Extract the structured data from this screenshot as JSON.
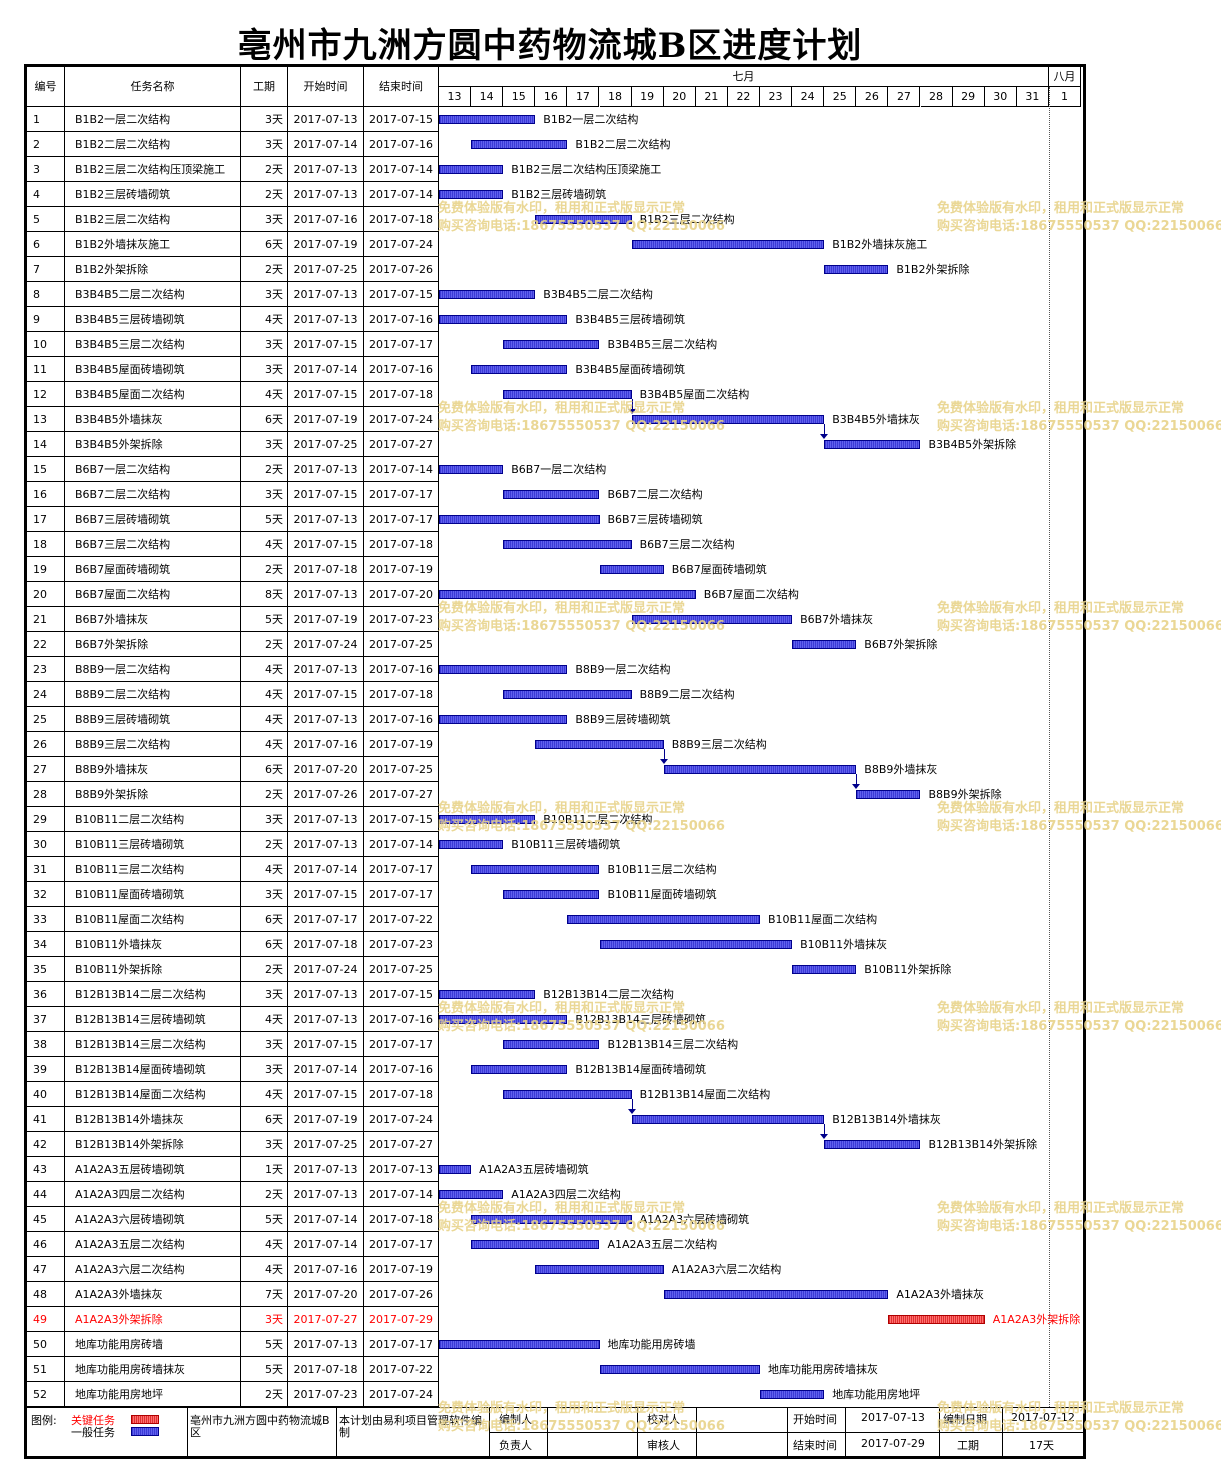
{
  "title": "亳州市九洲方圆中药物流城B区进度计划",
  "headers": {
    "id": "编号",
    "name": "任务名称",
    "duration": "工期",
    "start": "开始时间",
    "end": "结束时间"
  },
  "timeline": {
    "month1": "七月",
    "month2": "八月",
    "days": [
      "13",
      "14",
      "15",
      "16",
      "17",
      "18",
      "19",
      "20",
      "21",
      "22",
      "23",
      "24",
      "25",
      "26",
      "27",
      "28",
      "29",
      "30",
      "31",
      "1"
    ]
  },
  "chart_data": {
    "type": "gantt",
    "x_unit": "day",
    "xlim": [
      "2017-07-13",
      "2017-08-01"
    ],
    "tasks": [
      {
        "id": "1",
        "name": "B1B2一层二次结构",
        "duration": "3天",
        "start": "2017-07-13",
        "end": "2017-07-15"
      },
      {
        "id": "2",
        "name": "B1B2二层二次结构",
        "duration": "3天",
        "start": "2017-07-14",
        "end": "2017-07-16"
      },
      {
        "id": "3",
        "name": "B1B2三层二次结构压顶梁施工",
        "duration": "2天",
        "start": "2017-07-13",
        "end": "2017-07-14"
      },
      {
        "id": "4",
        "name": "B1B2三层砖墙砌筑",
        "duration": "2天",
        "start": "2017-07-13",
        "end": "2017-07-14"
      },
      {
        "id": "5",
        "name": "B1B2三层二次结构",
        "duration": "3天",
        "start": "2017-07-16",
        "end": "2017-07-18"
      },
      {
        "id": "6",
        "name": "B1B2外墙抹灰施工",
        "duration": "6天",
        "start": "2017-07-19",
        "end": "2017-07-24"
      },
      {
        "id": "7",
        "name": "B1B2外架拆除",
        "duration": "2天",
        "start": "2017-07-25",
        "end": "2017-07-26"
      },
      {
        "id": "8",
        "name": "B3B4B5二层二次结构",
        "duration": "3天",
        "start": "2017-07-13",
        "end": "2017-07-15"
      },
      {
        "id": "9",
        "name": "B3B4B5三层砖墙砌筑",
        "duration": "4天",
        "start": "2017-07-13",
        "end": "2017-07-16"
      },
      {
        "id": "10",
        "name": "B3B4B5三层二次结构",
        "duration": "3天",
        "start": "2017-07-15",
        "end": "2017-07-17"
      },
      {
        "id": "11",
        "name": "B3B4B5屋面砖墙砌筑",
        "duration": "3天",
        "start": "2017-07-14",
        "end": "2017-07-16"
      },
      {
        "id": "12",
        "name": "B3B4B5屋面二次结构",
        "duration": "4天",
        "start": "2017-07-15",
        "end": "2017-07-18"
      },
      {
        "id": "13",
        "name": "B3B4B5外墙抹灰",
        "duration": "6天",
        "start": "2017-07-19",
        "end": "2017-07-24"
      },
      {
        "id": "14",
        "name": "B3B4B5外架拆除",
        "duration": "3天",
        "start": "2017-07-25",
        "end": "2017-07-27"
      },
      {
        "id": "15",
        "name": "B6B7一层二次结构",
        "duration": "2天",
        "start": "2017-07-13",
        "end": "2017-07-14"
      },
      {
        "id": "16",
        "name": "B6B7二层二次结构",
        "duration": "3天",
        "start": "2017-07-15",
        "end": "2017-07-17"
      },
      {
        "id": "17",
        "name": "B6B7三层砖墙砌筑",
        "duration": "5天",
        "start": "2017-07-13",
        "end": "2017-07-17"
      },
      {
        "id": "18",
        "name": "B6B7三层二次结构",
        "duration": "4天",
        "start": "2017-07-15",
        "end": "2017-07-18"
      },
      {
        "id": "19",
        "name": "B6B7屋面砖墙砌筑",
        "duration": "2天",
        "start": "2017-07-18",
        "end": "2017-07-19"
      },
      {
        "id": "20",
        "name": "B6B7屋面二次结构",
        "duration": "8天",
        "start": "2017-07-13",
        "end": "2017-07-20"
      },
      {
        "id": "21",
        "name": "B6B7外墙抹灰",
        "duration": "5天",
        "start": "2017-07-19",
        "end": "2017-07-23"
      },
      {
        "id": "22",
        "name": "B6B7外架拆除",
        "duration": "2天",
        "start": "2017-07-24",
        "end": "2017-07-25"
      },
      {
        "id": "23",
        "name": "B8B9一层二次结构",
        "duration": "4天",
        "start": "2017-07-13",
        "end": "2017-07-16"
      },
      {
        "id": "24",
        "name": "B8B9二层二次结构",
        "duration": "4天",
        "start": "2017-07-15",
        "end": "2017-07-18"
      },
      {
        "id": "25",
        "name": "B8B9三层砖墙砌筑",
        "duration": "4天",
        "start": "2017-07-13",
        "end": "2017-07-16"
      },
      {
        "id": "26",
        "name": "B8B9三层二次结构",
        "duration": "4天",
        "start": "2017-07-16",
        "end": "2017-07-19"
      },
      {
        "id": "27",
        "name": "B8B9外墙抹灰",
        "duration": "6天",
        "start": "2017-07-20",
        "end": "2017-07-25"
      },
      {
        "id": "28",
        "name": "B8B9外架拆除",
        "duration": "2天",
        "start": "2017-07-26",
        "end": "2017-07-27"
      },
      {
        "id": "29",
        "name": "B10B11二层二次结构",
        "duration": "3天",
        "start": "2017-07-13",
        "end": "2017-07-15"
      },
      {
        "id": "30",
        "name": "B10B11三层砖墙砌筑",
        "duration": "2天",
        "start": "2017-07-13",
        "end": "2017-07-14"
      },
      {
        "id": "31",
        "name": "B10B11三层二次结构",
        "duration": "4天",
        "start": "2017-07-14",
        "end": "2017-07-17"
      },
      {
        "id": "32",
        "name": "B10B11屋面砖墙砌筑",
        "duration": "3天",
        "start": "2017-07-15",
        "end": "2017-07-17"
      },
      {
        "id": "33",
        "name": "B10B11屋面二次结构",
        "duration": "6天",
        "start": "2017-07-17",
        "end": "2017-07-22"
      },
      {
        "id": "34",
        "name": "B10B11外墙抹灰",
        "duration": "6天",
        "start": "2017-07-18",
        "end": "2017-07-23"
      },
      {
        "id": "35",
        "name": "B10B11外架拆除",
        "duration": "2天",
        "start": "2017-07-24",
        "end": "2017-07-25"
      },
      {
        "id": "36",
        "name": "B12B13B14二层二次结构",
        "duration": "3天",
        "start": "2017-07-13",
        "end": "2017-07-15"
      },
      {
        "id": "37",
        "name": "B12B13B14三层砖墙砌筑",
        "duration": "4天",
        "start": "2017-07-13",
        "end": "2017-07-16"
      },
      {
        "id": "38",
        "name": "B12B13B14三层二次结构",
        "duration": "3天",
        "start": "2017-07-15",
        "end": "2017-07-17"
      },
      {
        "id": "39",
        "name": "B12B13B14屋面砖墙砌筑",
        "duration": "3天",
        "start": "2017-07-14",
        "end": "2017-07-16"
      },
      {
        "id": "40",
        "name": "B12B13B14屋面二次结构",
        "duration": "4天",
        "start": "2017-07-15",
        "end": "2017-07-18"
      },
      {
        "id": "41",
        "name": "B12B13B14外墙抹灰",
        "duration": "6天",
        "start": "2017-07-19",
        "end": "2017-07-24"
      },
      {
        "id": "42",
        "name": "B12B13B14外架拆除",
        "duration": "3天",
        "start": "2017-07-25",
        "end": "2017-07-27"
      },
      {
        "id": "43",
        "name": "A1A2A3五层砖墙砌筑",
        "duration": "1天",
        "start": "2017-07-13",
        "end": "2017-07-13"
      },
      {
        "id": "44",
        "name": "A1A2A3四层二次结构",
        "duration": "2天",
        "start": "2017-07-13",
        "end": "2017-07-14"
      },
      {
        "id": "45",
        "name": "A1A2A3六层砖墙砌筑",
        "duration": "5天",
        "start": "2017-07-14",
        "end": "2017-07-18"
      },
      {
        "id": "46",
        "name": "A1A2A3五层二次结构",
        "duration": "4天",
        "start": "2017-07-14",
        "end": "2017-07-17"
      },
      {
        "id": "47",
        "name": "A1A2A3六层二次结构",
        "duration": "4天",
        "start": "2017-07-16",
        "end": "2017-07-19"
      },
      {
        "id": "48",
        "name": "A1A2A3外墙抹灰",
        "duration": "7天",
        "start": "2017-07-20",
        "end": "2017-07-26"
      },
      {
        "id": "49",
        "name": "A1A2A3外架拆除",
        "duration": "3天",
        "start": "2017-07-27",
        "end": "2017-07-29",
        "critical": true
      },
      {
        "id": "50",
        "name": "地库功能用房砖墙",
        "duration": "5天",
        "start": "2017-07-13",
        "end": "2017-07-17"
      },
      {
        "id": "51",
        "name": "地库功能用房砖墙抹灰",
        "duration": "5天",
        "start": "2017-07-18",
        "end": "2017-07-22"
      },
      {
        "id": "52",
        "name": "地库功能用房地坪",
        "duration": "2天",
        "start": "2017-07-23",
        "end": "2017-07-24"
      }
    ],
    "links": [
      [
        "12",
        "13"
      ],
      [
        "13",
        "14"
      ],
      [
        "26",
        "27"
      ],
      [
        "27",
        "28"
      ],
      [
        "40",
        "41"
      ],
      [
        "41",
        "42"
      ]
    ]
  },
  "watermark": {
    "line1": "免费体验版有水印，租用和正式版显示正常",
    "line2": "购买咨询电话:18675550537 QQ:22150066"
  },
  "footer": {
    "legend_label": "图例:",
    "critical_label": "关键任务",
    "normal_label": "一般任务",
    "project": "亳州市九洲方圆中药物流城B区",
    "note": "本计划由易利项目管理软件编制",
    "compiler": "编制人",
    "reviewer": "校对人",
    "owner": "负责人",
    "auditor": "审核人",
    "start_label": "开始时间",
    "start_value": "2017-07-13",
    "end_label": "结束时间",
    "end_value": "2017-07-29",
    "date_label": "编制日期",
    "date_value": "2017-07-12",
    "dur_label": "工期",
    "dur_value": "17天"
  },
  "colors": {
    "normal": "#3b3bd6",
    "critical": "#e03030",
    "watermark": "#e8d38a"
  }
}
